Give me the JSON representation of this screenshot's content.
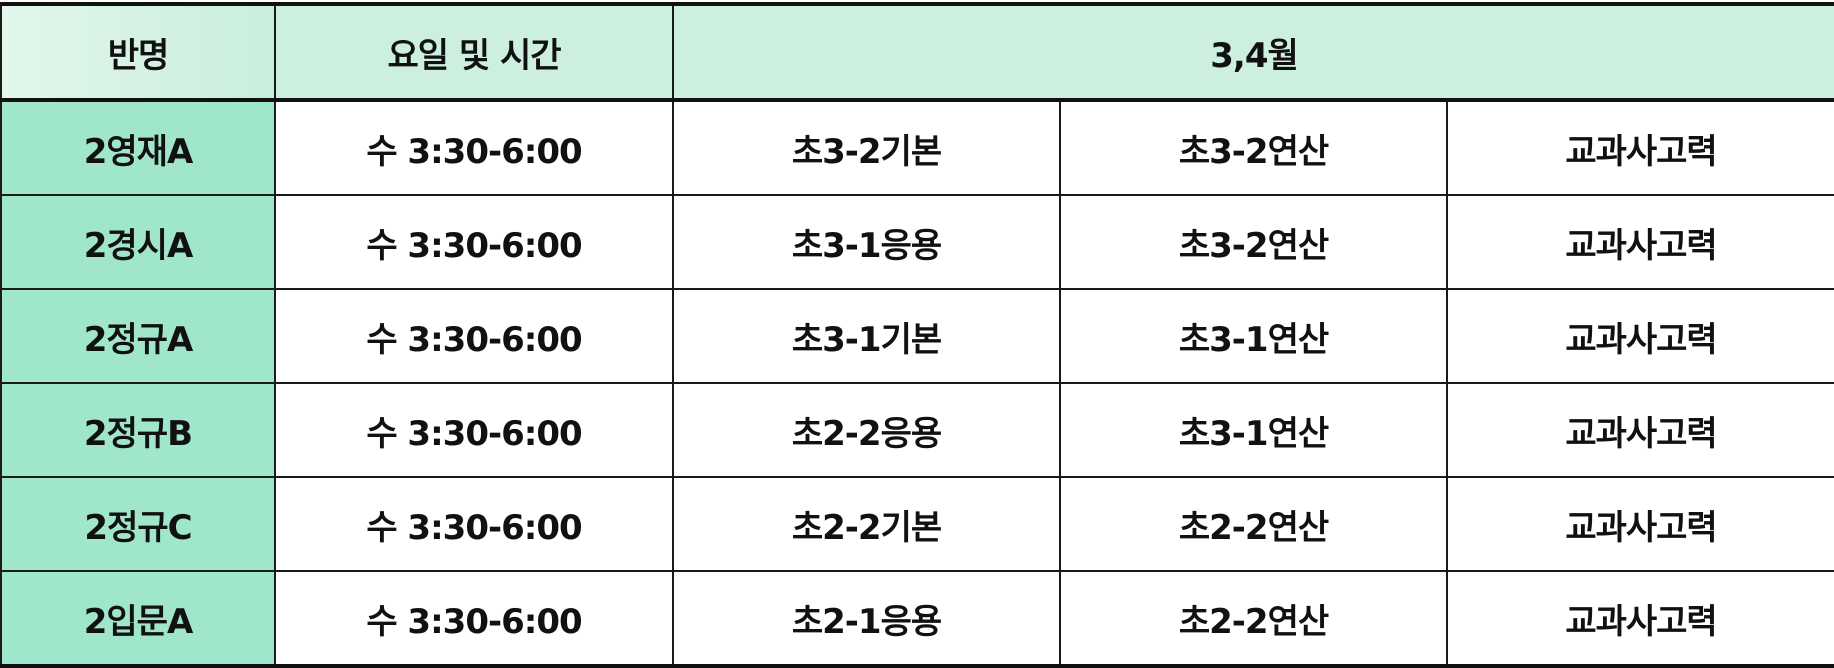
{
  "header": {
    "class_name": "반명",
    "day_time": "요일 및 시간",
    "months": "3,4월"
  },
  "rows": [
    {
      "name": "2영재A",
      "time": "수 3:30-6:00",
      "c1": "초3-2기본",
      "c2": "초3-2연산",
      "c3": "교과사고력"
    },
    {
      "name": "2경시A",
      "time": "수 3:30-6:00",
      "c1": "초3-1응용",
      "c2": "초3-2연산",
      "c3": "교과사고력"
    },
    {
      "name": "2정규A",
      "time": "수 3:30-6:00",
      "c1": "초3-1기본",
      "c2": "초3-1연산",
      "c3": "교과사고력"
    },
    {
      "name": "2정규B",
      "time": "수 3:30-6:00",
      "c1": "초2-2응용",
      "c2": "초3-1연산",
      "c3": "교과사고력"
    },
    {
      "name": "2정규C",
      "time": "수 3:30-6:00",
      "c1": "초2-2기본",
      "c2": "초2-2연산",
      "c3": "교과사고력"
    },
    {
      "name": "2입문A",
      "time": "수 3:30-6:00",
      "c1": "초2-1응용",
      "c2": "초2-2연산",
      "c3": "교과사고력"
    }
  ],
  "colors": {
    "header_bg": "#ccefe0",
    "name_col_bg": "#9fe6cb",
    "border": "#1a1a1a"
  }
}
